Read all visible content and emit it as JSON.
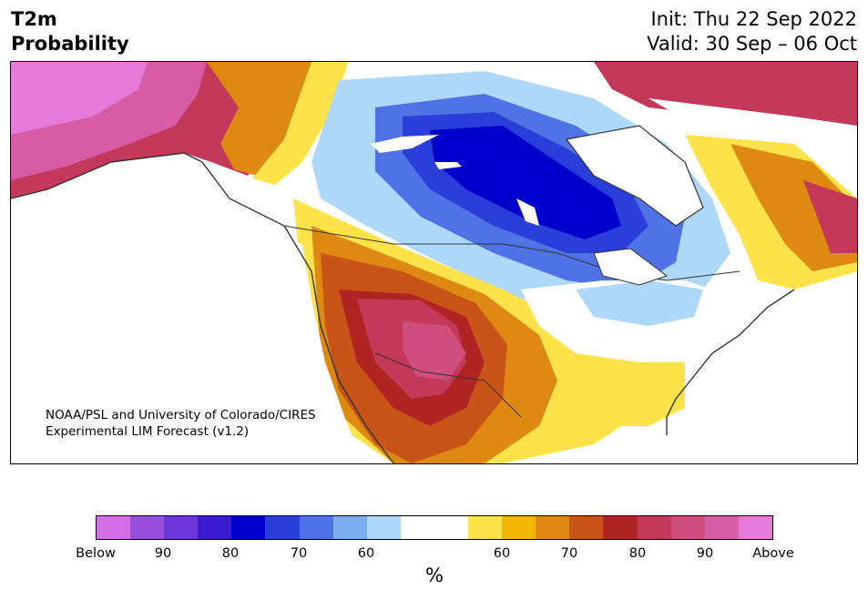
{
  "header": {
    "title_line1": "T2m",
    "title_line2": "Probability",
    "init": "Init: Thu 22 Sep 2022",
    "valid": "Valid: 30 Sep – 06 Oct"
  },
  "map": {
    "credit_line1": "NOAA/PSL and University of Colorado/CIRES",
    "credit_line2": "Experimental LIM Forecast (v1.2)"
  },
  "colorbar": {
    "colors": [
      "#d46ee6",
      "#9a4fdc",
      "#6a36d6",
      "#3a1bd0",
      "#0000cc",
      "#2a3ed9",
      "#4f73e6",
      "#7aaeee",
      "#aed8fa",
      "#ffffff",
      "#ffffff",
      "#fde24a",
      "#f2b705",
      "#de8912",
      "#c85517",
      "#b02424",
      "#c4385a",
      "#cf4e7e",
      "#d65ca6",
      "#e67ad8"
    ],
    "tick_labels": [
      "Below",
      "90",
      "80",
      "70",
      "60",
      "60",
      "70",
      "80",
      "90",
      "Above"
    ],
    "unit": "%"
  }
}
